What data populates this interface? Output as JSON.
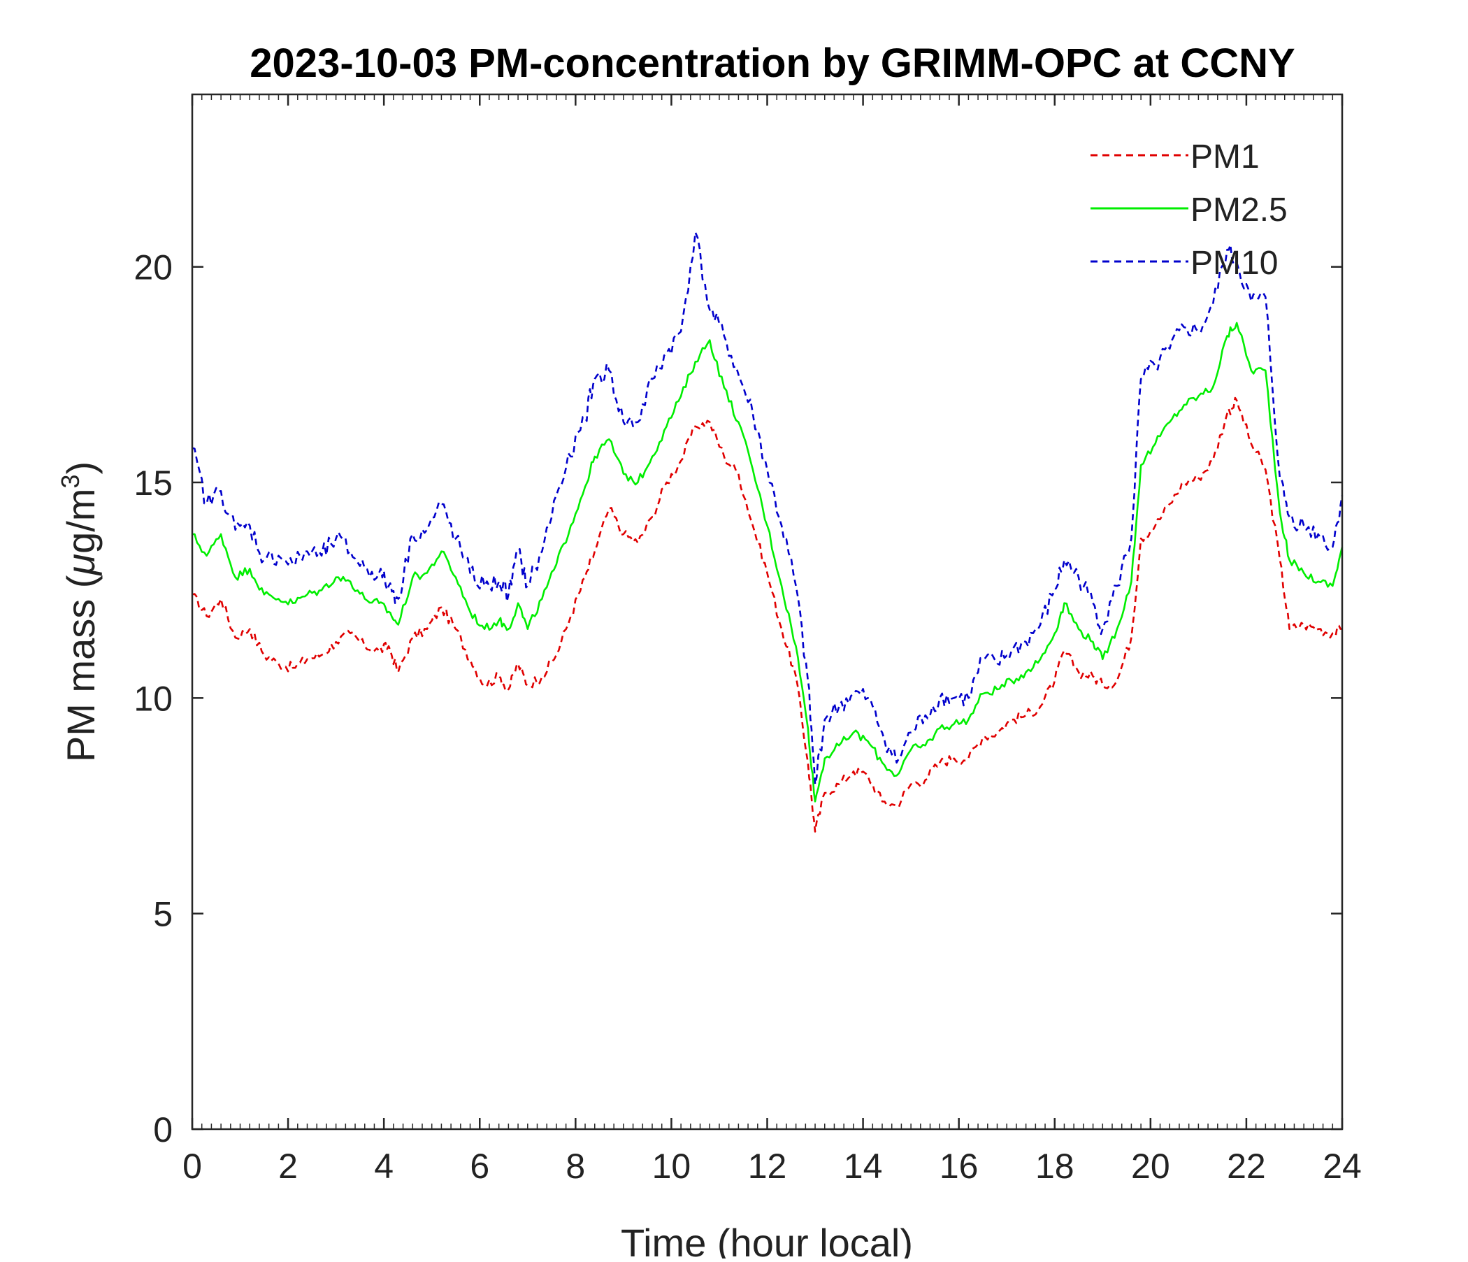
{
  "chart_data": {
    "type": "line",
    "title": "2023-10-03 PM-concentration by GRIMM-OPC at CCNY",
    "xlabel": "Time (hour local)",
    "ylabel_prefix": "PM mass (",
    "ylabel_mu": "μ",
    "ylabel_unit": "g/m",
    "ylabel_sup": "3",
    "ylabel_suffix": ")",
    "xlim": [
      0,
      24
    ],
    "ylim": [
      0,
      24
    ],
    "xticks": [
      0,
      2,
      4,
      6,
      8,
      10,
      12,
      14,
      16,
      18,
      20,
      22,
      24
    ],
    "yticks": [
      0,
      5,
      10,
      15,
      20
    ],
    "legend_position": "top-right",
    "series": [
      {
        "name": "PM1",
        "color": "#e00000",
        "style": "dashed",
        "x": [
          0,
          0.3,
          0.6,
          0.9,
          1.2,
          1.5,
          1.8,
          2.1,
          2.4,
          2.7,
          3.0,
          3.3,
          3.6,
          3.9,
          4.1,
          4.3,
          4.6,
          4.9,
          5.2,
          5.5,
          5.8,
          6.1,
          6.4,
          6.6,
          6.8,
          7.0,
          7.3,
          7.6,
          7.9,
          8.2,
          8.4,
          8.7,
          9.0,
          9.3,
          9.6,
          9.9,
          10.2,
          10.5,
          10.8,
          11.1,
          11.4,
          11.7,
          12.0,
          12.3,
          12.6,
          12.85,
          13.0,
          13.2,
          13.5,
          13.8,
          14.1,
          14.4,
          14.7,
          15.0,
          15.3,
          15.6,
          15.9,
          16.2,
          16.5,
          16.8,
          17.1,
          17.4,
          17.7,
          18.0,
          18.2,
          18.5,
          18.8,
          19.0,
          19.3,
          19.6,
          19.8,
          20.1,
          20.4,
          20.7,
          21.0,
          21.3,
          21.6,
          21.8,
          22.1,
          22.4,
          22.7,
          22.9,
          23.2,
          23.5,
          23.8,
          24.0
        ],
        "values": [
          12.4,
          11.9,
          12.3,
          11.4,
          11.6,
          11.0,
          10.8,
          10.7,
          10.9,
          11.0,
          11.3,
          11.5,
          11.2,
          11.1,
          11.2,
          10.6,
          11.4,
          11.6,
          12.1,
          11.6,
          10.9,
          10.3,
          10.5,
          10.2,
          10.8,
          10.3,
          10.5,
          11.0,
          11.9,
          12.8,
          13.4,
          14.4,
          13.8,
          13.6,
          14.2,
          15.0,
          15.5,
          16.3,
          16.4,
          15.6,
          15.2,
          14.0,
          12.9,
          11.6,
          10.5,
          8.5,
          6.9,
          7.8,
          8.0,
          8.3,
          8.2,
          7.6,
          7.5,
          8.0,
          8.1,
          8.5,
          8.6,
          8.6,
          9.1,
          9.2,
          9.5,
          9.6,
          9.8,
          10.4,
          11.1,
          10.6,
          10.5,
          10.3,
          10.4,
          11.4,
          13.7,
          14.0,
          14.5,
          15.0,
          15.1,
          15.5,
          16.6,
          16.9,
          15.9,
          15.3,
          13.2,
          11.6,
          11.7,
          11.6,
          11.5,
          11.6
        ]
      },
      {
        "name": "PM2.5",
        "color": "#00ee00",
        "style": "solid",
        "x": [
          0,
          0.3,
          0.6,
          0.9,
          1.2,
          1.5,
          1.8,
          2.1,
          2.4,
          2.7,
          3.0,
          3.3,
          3.6,
          3.9,
          4.1,
          4.3,
          4.6,
          4.9,
          5.2,
          5.5,
          5.8,
          6.1,
          6.4,
          6.6,
          6.8,
          7.0,
          7.3,
          7.6,
          7.9,
          8.2,
          8.4,
          8.7,
          9.0,
          9.3,
          9.6,
          9.9,
          10.2,
          10.5,
          10.8,
          11.1,
          11.4,
          11.7,
          12.0,
          12.3,
          12.6,
          12.85,
          13.0,
          13.2,
          13.5,
          13.8,
          14.1,
          14.4,
          14.7,
          15.0,
          15.3,
          15.6,
          15.9,
          16.2,
          16.5,
          16.8,
          17.1,
          17.4,
          17.7,
          18.0,
          18.2,
          18.5,
          18.8,
          19.0,
          19.3,
          19.6,
          19.8,
          20.1,
          20.4,
          20.7,
          21.0,
          21.3,
          21.6,
          21.8,
          22.1,
          22.4,
          22.7,
          22.9,
          23.2,
          23.5,
          23.8,
          24.0
        ],
        "values": [
          13.8,
          13.3,
          13.8,
          12.8,
          13.0,
          12.4,
          12.3,
          12.2,
          12.4,
          12.5,
          12.8,
          12.7,
          12.3,
          12.2,
          12.0,
          11.7,
          12.8,
          12.9,
          13.4,
          12.8,
          12.0,
          11.6,
          11.8,
          11.6,
          12.2,
          11.6,
          12.3,
          13.1,
          14.0,
          14.9,
          15.6,
          16.0,
          15.2,
          15.0,
          15.6,
          16.3,
          17.0,
          17.8,
          18.3,
          17.2,
          16.4,
          15.3,
          14.0,
          12.6,
          11.2,
          9.3,
          7.6,
          8.6,
          8.9,
          9.2,
          9.0,
          8.5,
          8.2,
          8.8,
          8.9,
          9.3,
          9.4,
          9.5,
          10.1,
          10.2,
          10.4,
          10.6,
          10.9,
          11.5,
          12.2,
          11.6,
          11.3,
          10.9,
          11.6,
          12.7,
          15.4,
          15.9,
          16.4,
          16.8,
          17.0,
          17.2,
          18.4,
          18.7,
          17.6,
          17.6,
          14.3,
          13.2,
          12.9,
          12.7,
          12.6,
          13.5
        ]
      },
      {
        "name": "PM10",
        "color": "#0000cc",
        "style": "dashed",
        "x": [
          0,
          0.3,
          0.6,
          0.9,
          1.2,
          1.5,
          1.8,
          2.1,
          2.4,
          2.7,
          3.0,
          3.3,
          3.6,
          3.9,
          4.1,
          4.3,
          4.6,
          4.9,
          5.2,
          5.5,
          5.8,
          6.1,
          6.4,
          6.6,
          6.8,
          7.0,
          7.3,
          7.6,
          7.9,
          8.2,
          8.4,
          8.7,
          9.0,
          9.3,
          9.6,
          9.9,
          10.2,
          10.5,
          10.8,
          11.1,
          11.4,
          11.7,
          12.0,
          12.3,
          12.6,
          12.85,
          13.0,
          13.2,
          13.5,
          13.8,
          14.1,
          14.4,
          14.7,
          15.0,
          15.3,
          15.6,
          15.9,
          16.2,
          16.5,
          16.8,
          17.1,
          17.4,
          17.7,
          18.0,
          18.2,
          18.5,
          18.8,
          19.0,
          19.3,
          19.6,
          19.8,
          20.1,
          20.4,
          20.7,
          21.0,
          21.3,
          21.6,
          21.8,
          22.1,
          22.4,
          22.7,
          22.9,
          23.2,
          23.5,
          23.8,
          24.0
        ],
        "values": [
          15.8,
          14.5,
          14.8,
          13.9,
          14.0,
          13.2,
          13.3,
          13.1,
          13.4,
          13.3,
          13.7,
          13.4,
          13.0,
          12.9,
          12.6,
          12.3,
          13.8,
          13.9,
          14.5,
          13.7,
          12.9,
          12.6,
          12.7,
          12.4,
          13.4,
          12.6,
          13.4,
          14.7,
          15.6,
          16.5,
          17.4,
          17.6,
          16.4,
          16.4,
          17.4,
          18.0,
          18.5,
          20.8,
          19.0,
          18.4,
          17.5,
          16.6,
          15.3,
          14.0,
          12.6,
          10.4,
          8.0,
          9.5,
          9.8,
          10.1,
          10.0,
          9.2,
          8.5,
          9.2,
          9.6,
          10.0,
          10.0,
          10.0,
          10.9,
          10.8,
          11.1,
          11.3,
          11.7,
          12.5,
          13.2,
          12.8,
          12.2,
          11.6,
          12.6,
          13.7,
          17.4,
          17.7,
          18.1,
          18.6,
          18.5,
          19.1,
          20.4,
          20.1,
          19.2,
          19.3,
          15.1,
          14.2,
          14.0,
          13.8,
          13.5,
          14.7
        ]
      }
    ]
  }
}
